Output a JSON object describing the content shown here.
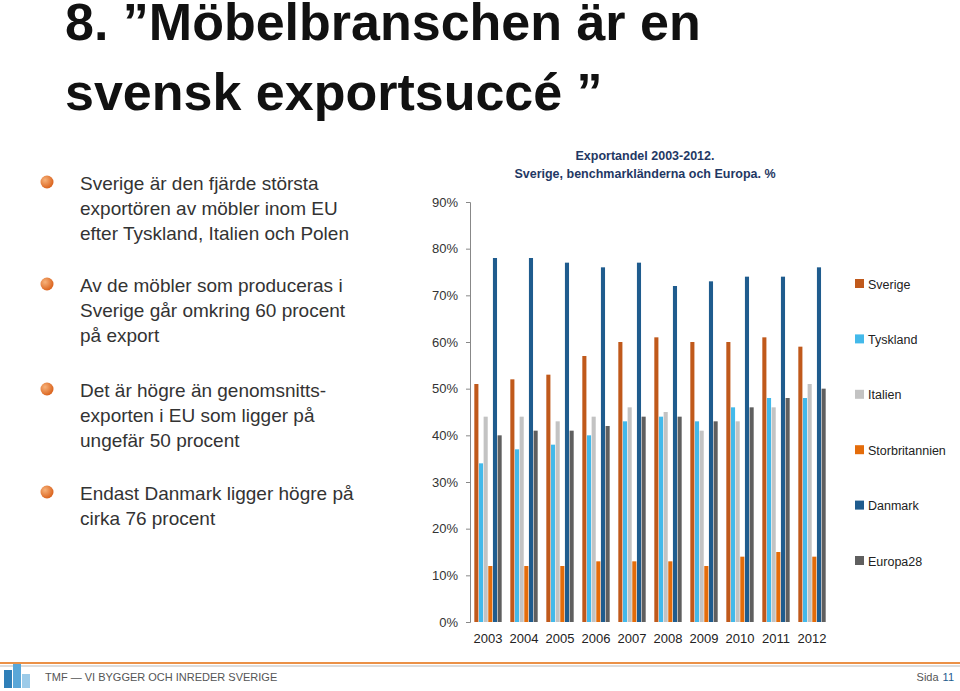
{
  "slide": {
    "title": [
      "8.  ”Möbelbranschen är en",
      "svensk exportsuccé ”"
    ],
    "bullets": [
      [
        "Sverige är den fjärde största",
        "exportören av möbler inom EU",
        "efter Tyskland, Italien och Polen"
      ],
      [
        "Av de möbler som produceras i",
        "Sverige går omkring 60 procent",
        "på export"
      ],
      [
        "Det är högre än genomsnitts-",
        "exporten i EU som ligger på",
        "ungefär 50 procent"
      ],
      [
        "Endast Danmark ligger högre på",
        "cirka 76 procent"
      ]
    ],
    "footer": {
      "text": "TMF — VI BYGGER OCH INREDER SVERIGE",
      "page_label": "Sida",
      "page": "11"
    }
  },
  "chart_data": {
    "type": "bar",
    "title": "Exportandel  2003-2012.",
    "subtitle": "Sverige, benchmarkländerna och Europa. %",
    "categories": [
      "2003",
      "2004",
      "2005",
      "2006",
      "2007",
      "2008",
      "2009",
      "2010",
      "2011",
      "2012"
    ],
    "series": [
      {
        "name": "Sverige",
        "color": "#c0591b",
        "values": [
          51,
          52,
          53,
          57,
          60,
          61,
          60,
          60,
          61,
          59
        ]
      },
      {
        "name": "Tyskland",
        "color": "#43b9ea",
        "values": [
          34,
          37,
          38,
          40,
          43,
          44,
          43,
          46,
          48,
          48
        ]
      },
      {
        "name": "Italien",
        "color": "#c3c3c3",
        "values": [
          44,
          44,
          43,
          44,
          46,
          45,
          41,
          43,
          46,
          51
        ]
      },
      {
        "name": "Storbritannien",
        "color": "#e46c0a",
        "values": [
          12,
          12,
          12,
          13,
          13,
          13,
          12,
          14,
          15,
          14
        ]
      },
      {
        "name": "Danmark",
        "color": "#1f5c8e",
        "values": [
          78,
          78,
          77,
          76,
          77,
          72,
          73,
          74,
          74,
          76
        ]
      },
      {
        "name": "Europa28",
        "color": "#5f5f5f",
        "values": [
          40,
          41,
          41,
          42,
          44,
          44,
          43,
          46,
          48,
          50
        ]
      }
    ],
    "ylim": [
      0,
      90
    ],
    "yticks": [
      {
        "value": 0,
        "label": "0%"
      },
      {
        "value": 10,
        "label": "10%"
      },
      {
        "value": 20,
        "label": "20%"
      },
      {
        "value": 30,
        "label": "30%"
      },
      {
        "value": 40,
        "label": "40%"
      },
      {
        "value": 50,
        "label": "50%"
      },
      {
        "value": 60,
        "label": "60%"
      },
      {
        "value": 70,
        "label": "70%"
      },
      {
        "value": 80,
        "label": "80%"
      },
      {
        "value": 90,
        "label": "90%"
      }
    ],
    "grid": false,
    "legend": "right"
  }
}
